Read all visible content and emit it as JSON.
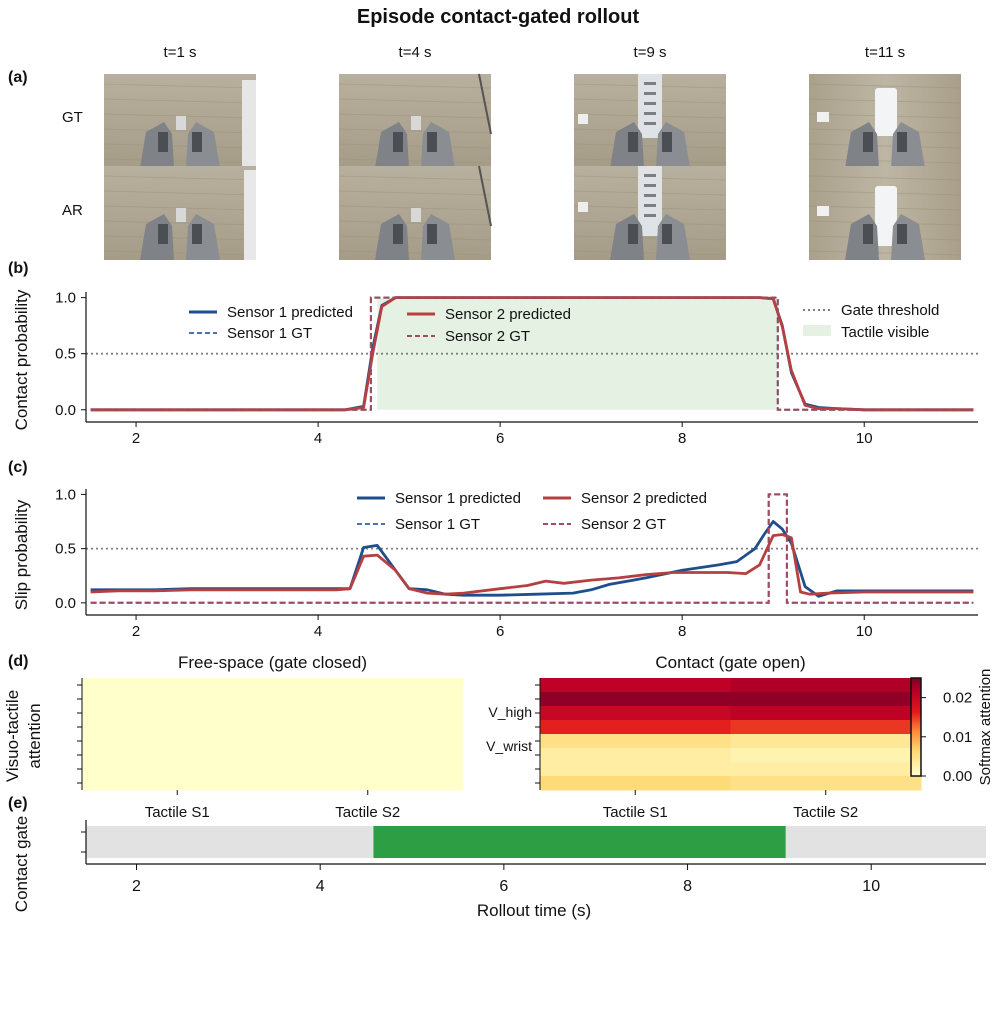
{
  "title": "Episode contact-gated rollout",
  "panels": {
    "a": "(a)",
    "b": "(b)",
    "c": "(c)",
    "d": "(d)",
    "e": "(e)"
  },
  "frames": {
    "times": [
      "t=1 s",
      "t=4 s",
      "t=9 s",
      "t=11 s"
    ],
    "rows": [
      "GT",
      "AR"
    ]
  },
  "colors": {
    "sensor1": "#1f4e8c",
    "sensor2": "#b5403f",
    "gt1": "#4a74b0",
    "gt2": "#a04a5a",
    "threshold": "#808080",
    "tactile_visible": "#e5f2e3",
    "gate_open": "#2e9e45",
    "gate_closed": "#e2e2e2"
  },
  "chart_data": [
    {
      "id": "contact",
      "type": "line",
      "ylabel": "Contact probability",
      "xlim": [
        1.45,
        11.25
      ],
      "ylim": [
        -0.02,
        1.05
      ],
      "xticks": [
        2,
        4,
        6,
        8,
        10
      ],
      "yticks": [
        0.0,
        0.5,
        1.0
      ],
      "ytick_labels": [
        "0.0",
        "0.5",
        "1.0"
      ],
      "threshold": 0.5,
      "threshold_label": "Gate threshold",
      "shaded": {
        "label": "Tactile visible",
        "x": [
          4.65,
          9.05
        ]
      },
      "series": [
        {
          "name": "Sensor 1 predicted",
          "style": "solid",
          "color": "#1f4e8c",
          "x": [
            1.5,
            2,
            3,
            4,
            4.3,
            4.5,
            4.6,
            4.7,
            4.85,
            5,
            6,
            7,
            8,
            8.85,
            9.0,
            9.1,
            9.2,
            9.35,
            9.5,
            9.7,
            10,
            11,
            11.2
          ],
          "y": [
            0.0,
            0.0,
            0.0,
            0.0,
            0.0,
            0.03,
            0.55,
            0.93,
            1.0,
            1.0,
            1.0,
            1.0,
            1.0,
            1.0,
            0.99,
            0.75,
            0.33,
            0.05,
            0.02,
            0.01,
            0.0,
            0.0,
            0.0
          ]
        },
        {
          "name": "Sensor 1 GT",
          "style": "dashed",
          "color": "#4a74b0",
          "x": [
            1.5,
            4.58,
            4.58,
            9.05,
            9.05,
            11.2
          ],
          "y": [
            0,
            0,
            1,
            1,
            0,
            0
          ]
        },
        {
          "name": "Sensor 2 predicted",
          "style": "solid",
          "color": "#b5403f",
          "x": [
            1.5,
            2,
            3,
            4,
            4.3,
            4.5,
            4.6,
            4.7,
            4.85,
            5,
            6,
            7,
            8,
            8.85,
            9.0,
            9.1,
            9.2,
            9.35,
            9.5,
            9.7,
            10,
            11,
            11.2
          ],
          "y": [
            0.0,
            0.0,
            0.0,
            0.0,
            0.0,
            0.02,
            0.5,
            0.92,
            1.0,
            1.0,
            1.0,
            1.0,
            1.0,
            1.0,
            0.99,
            0.74,
            0.35,
            0.04,
            0.01,
            0.01,
            0.0,
            0.0,
            0.0
          ]
        },
        {
          "name": "Sensor 2 GT",
          "style": "dashed",
          "color": "#a04a5a",
          "x": [
            1.5,
            4.58,
            4.58,
            9.05,
            9.05,
            11.2
          ],
          "y": [
            0,
            0,
            1,
            1,
            0,
            0
          ]
        }
      ]
    },
    {
      "id": "slip",
      "type": "line",
      "ylabel": "Slip probability",
      "xlim": [
        1.45,
        11.25
      ],
      "ylim": [
        -0.02,
        1.05
      ],
      "xticks": [
        2,
        4,
        6,
        8,
        10
      ],
      "yticks": [
        0.0,
        0.5,
        1.0
      ],
      "ytick_labels": [
        "0.0",
        "0.5",
        "1.0"
      ],
      "threshold": 0.5,
      "series": [
        {
          "name": "Sensor 1 predicted",
          "style": "solid",
          "color": "#1f4e8c",
          "x": [
            1.5,
            1.8,
            2.2,
            2.6,
            3.0,
            3.4,
            3.8,
            4.2,
            4.35,
            4.5,
            4.65,
            4.85,
            5.0,
            5.2,
            5.4,
            5.6,
            6.0,
            6.4,
            6.8,
            7.0,
            7.2,
            7.6,
            8.0,
            8.4,
            8.6,
            8.8,
            8.9,
            9.0,
            9.1,
            9.2,
            9.35,
            9.5,
            9.7,
            10,
            10.5,
            11,
            11.2
          ],
          "y": [
            0.12,
            0.12,
            0.12,
            0.13,
            0.13,
            0.13,
            0.13,
            0.13,
            0.13,
            0.51,
            0.53,
            0.3,
            0.13,
            0.12,
            0.08,
            0.07,
            0.07,
            0.08,
            0.09,
            0.12,
            0.17,
            0.23,
            0.3,
            0.35,
            0.38,
            0.5,
            0.63,
            0.75,
            0.68,
            0.55,
            0.15,
            0.06,
            0.11,
            0.11,
            0.11,
            0.11,
            0.11
          ]
        },
        {
          "name": "Sensor 1 GT",
          "style": "dashed",
          "color": "#4a74b0",
          "x": [
            1.5,
            8.95,
            8.95,
            9.15,
            9.15,
            11.2
          ],
          "y": [
            0,
            0,
            1,
            1,
            0,
            0
          ]
        },
        {
          "name": "Sensor 2 predicted",
          "style": "solid",
          "color": "#b5403f",
          "x": [
            1.5,
            1.8,
            2.2,
            2.6,
            3.0,
            3.4,
            3.8,
            4.2,
            4.35,
            4.5,
            4.65,
            4.85,
            5.0,
            5.2,
            5.4,
            5.6,
            6.0,
            6.3,
            6.5,
            6.7,
            7.0,
            7.3,
            7.6,
            7.9,
            8.2,
            8.5,
            8.7,
            8.85,
            9.0,
            9.1,
            9.2,
            9.3,
            9.4,
            9.6,
            10,
            10.5,
            11,
            11.2
          ],
          "y": [
            0.1,
            0.11,
            0.11,
            0.12,
            0.12,
            0.12,
            0.12,
            0.12,
            0.13,
            0.43,
            0.44,
            0.3,
            0.13,
            0.09,
            0.08,
            0.09,
            0.13,
            0.16,
            0.2,
            0.18,
            0.21,
            0.23,
            0.26,
            0.28,
            0.28,
            0.28,
            0.27,
            0.35,
            0.62,
            0.63,
            0.6,
            0.1,
            0.08,
            0.09,
            0.1,
            0.1,
            0.1,
            0.1
          ]
        },
        {
          "name": "Sensor 2 GT",
          "style": "dashed",
          "color": "#a04a5a",
          "x": [
            1.5,
            8.95,
            8.95,
            9.15,
            9.15,
            11.2
          ],
          "y": [
            0,
            0,
            1,
            1,
            0,
            0
          ]
        }
      ]
    },
    {
      "id": "attention",
      "type": "heatmap",
      "ylabel": "Visuo-tactile\nattention",
      "colorbar_label": "Softmax attention",
      "colorbar_ticks": [
        0.0,
        0.01,
        0.02
      ],
      "colorbar_tick_labels": [
        "0.00",
        "0.01",
        "0.02"
      ],
      "vmax": 0.025,
      "subplots": [
        {
          "title": "Free-space (gate closed)",
          "columns": [
            "Tactile S1",
            "Tactile S2"
          ],
          "row_labels": [],
          "values": [
            [
              0,
              0
            ],
            [
              0,
              0
            ],
            [
              0,
              0
            ],
            [
              0,
              0
            ],
            [
              0,
              0
            ],
            [
              0,
              0
            ],
            [
              0,
              0
            ],
            [
              0,
              0
            ]
          ]
        },
        {
          "title": "Contact (gate open)",
          "columns": [
            "Tactile S1",
            "Tactile S2"
          ],
          "row_labels": [
            "V_high",
            "V_wrist"
          ],
          "values": [
            [
              0.021,
              0.022
            ],
            [
              0.024,
              0.024
            ],
            [
              0.02,
              0.021
            ],
            [
              0.016,
              0.015
            ],
            [
              0.005,
              0.004
            ],
            [
              0.003,
              0.002
            ],
            [
              0.003,
              0.003
            ],
            [
              0.006,
              0.005
            ]
          ]
        }
      ]
    },
    {
      "id": "gate",
      "type": "timeline",
      "ylabel": "Contact gate",
      "xlabel": "Rollout time (s)",
      "xlim": [
        1.45,
        11.25
      ],
      "xticks": [
        2,
        4,
        6,
        8,
        10
      ],
      "segments": [
        {
          "state": "closed",
          "start": 1.45,
          "end": 4.58
        },
        {
          "state": "open",
          "start": 4.58,
          "end": 9.07
        },
        {
          "state": "closed",
          "start": 9.07,
          "end": 11.25
        }
      ]
    }
  ]
}
